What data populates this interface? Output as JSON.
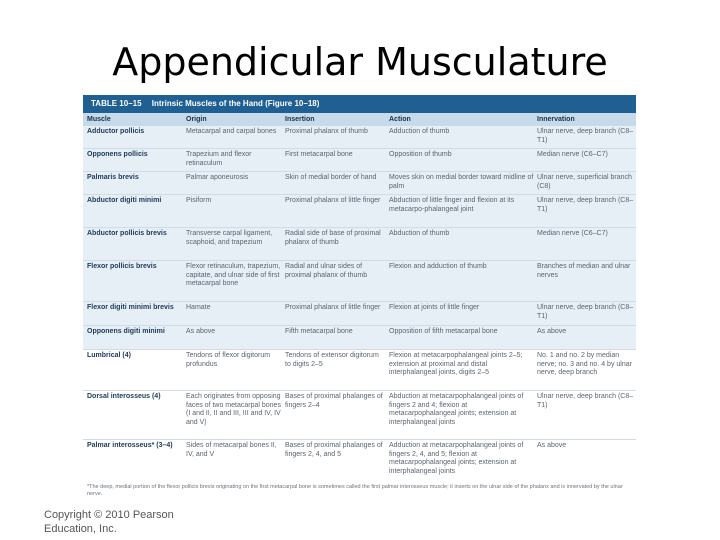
{
  "slide": {
    "title": "Appendicular Musculature",
    "copyright_line1": "Copyright © 2010 Pearson",
    "copyright_line2": "Education, Inc."
  },
  "table": {
    "number": "TABLE 10–15",
    "title": "Intrinsic Muscles of the Hand (Figure 10–18)",
    "columns": [
      "Muscle",
      "Origin",
      "Insertion",
      "Action",
      "Innervation"
    ],
    "rows": [
      [
        "Adductor pollicis",
        "Metacarpal and carpal bones",
        "Proximal phalanx of thumb",
        "Adduction of thumb",
        "Ulnar nerve, deep branch (C8–T1)"
      ],
      [
        "Opponens pollicis",
        "Trapezium and flexor retinaculum",
        "First metacarpal bone",
        "Opposition of thumb",
        "Median nerve (C6–C7)"
      ],
      [
        "Palmaris brevis",
        "Palmar aponeurosis",
        "Skin of medial border of hand",
        "Moves skin on medial border toward midline of palm",
        "Ulnar nerve, superficial branch (C8)"
      ],
      [
        "Abductor digiti minimi",
        "Pisiform",
        "Proximal phalanx of little finger",
        "Abduction of little finger and flexion at its metacarpo-phalangeal joint",
        "Ulnar nerve, deep branch (C8–T1)"
      ],
      [
        "Abductor pollicis brevis",
        "Transverse carpal ligament, scaphoid, and trapezium",
        "Radial side of base of proximal phalanx of thumb",
        "Abduction of thumb",
        "Median nerve (C6–C7)"
      ],
      [
        "Flexor pollicis brevis",
        "Flexor retinaculum, trapezium, capitate, and ulnar side of first metacarpal bone",
        "Radial and ulnar sides of proximal phalanx of thumb",
        "Flexion and adduction of thumb",
        "Branches of median and ulnar nerves"
      ],
      [
        "Flexor digiti minimi brevis",
        "Hamate",
        "Proximal phalanx of little finger",
        "Flexion at joints of little finger",
        "Ulnar nerve, deep branch (C8–T1)"
      ],
      [
        "Opponens digiti minimi",
        "As above",
        "Fifth metacarpal bone",
        "Opposition of fifth metacarpal bone",
        "As above"
      ],
      [
        "Lumbrical (4)",
        "Tendons of flexor digitorum profundus",
        "Tendons of extensor digitorum to digits 2–5",
        "Flexion at metacarpophalangeal joints 2–5; extension at proximal and distal interphalangeal joints, digits 2–5",
        "No. 1 and no. 2 by median nerve; no. 3 and no. 4 by ulnar nerve, deep branch"
      ],
      [
        "Dorsal interosseus (4)",
        "Each originates from opposing faces of two metacarpal bones (I and II, II and III, III and IV, IV and V)",
        "Bases of proximal phalanges of fingers 2–4",
        "Abduction at metacarpophalangeal joints of fingers 2 and 4; flexion at metacarpophalangeal joints; extension at interphalangeal joints",
        "Ulnar nerve, deep branch (C8–T1)"
      ],
      [
        "Palmar interosseus* (3–4)",
        "Sides of metacarpal bones II, IV, and V",
        "Bases of proximal phalanges of fingers 2, 4, and 5",
        "Adduction at metacarpophalangeal joints of fingers 2, 4, and 5; flexion at metacarpophalangeal joints; extension at interphalangeal joints",
        "As above"
      ]
    ],
    "footnote": "*The deep, medial portion of the flexor pollicis brevis originating on the first metacarpal bone is sometimes called the first palmar interosseus muscle; it inserts on the ulnar side of the phalanx and is innervated by the ulnar nerve."
  }
}
